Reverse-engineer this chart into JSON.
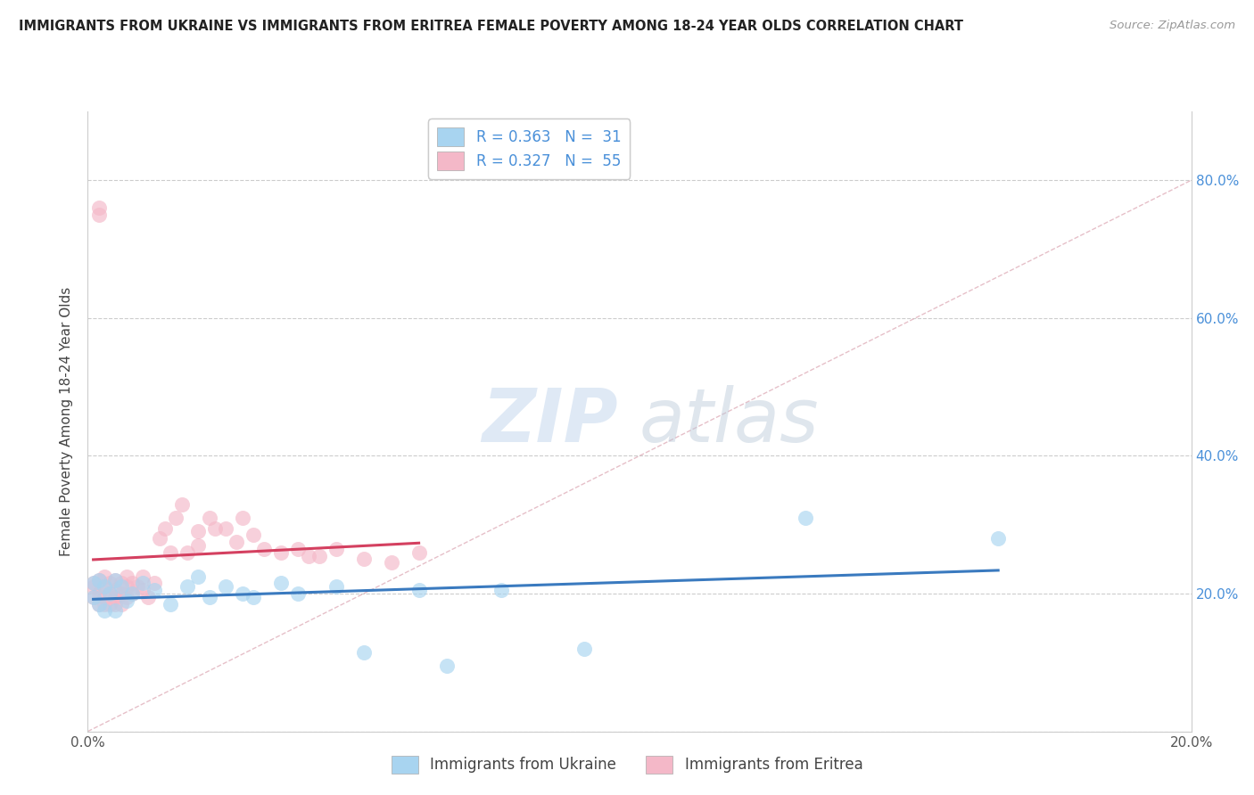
{
  "title": "IMMIGRANTS FROM UKRAINE VS IMMIGRANTS FROM ERITREA FEMALE POVERTY AMONG 18-24 YEAR OLDS CORRELATION CHART",
  "source": "Source: ZipAtlas.com",
  "ylabel": "Female Poverty Among 18-24 Year Olds",
  "xlim": [
    0.0,
    0.2
  ],
  "ylim": [
    0.0,
    0.9
  ],
  "ukraine_color": "#a8d4f0",
  "eritrea_color": "#f4b8c8",
  "ukraine_line_color": "#3a7abf",
  "eritrea_line_color": "#d44060",
  "diag_line_color": "#e0b0bb",
  "ukraine_R": 0.363,
  "ukraine_N": 31,
  "eritrea_R": 0.327,
  "eritrea_N": 55,
  "watermark_zip": "ZIP",
  "watermark_atlas": "atlas",
  "legend_ukraine": "Immigrants from Ukraine",
  "legend_eritrea": "Immigrants from Eritrea",
  "ukraine_x": [
    0.001,
    0.001,
    0.002,
    0.002,
    0.003,
    0.003,
    0.004,
    0.005,
    0.005,
    0.006,
    0.007,
    0.008,
    0.01,
    0.012,
    0.015,
    0.018,
    0.02,
    0.022,
    0.025,
    0.028,
    0.03,
    0.035,
    0.038,
    0.045,
    0.05,
    0.06,
    0.065,
    0.075,
    0.09,
    0.13,
    0.165
  ],
  "ukraine_y": [
    0.215,
    0.195,
    0.22,
    0.185,
    0.21,
    0.175,
    0.2,
    0.22,
    0.175,
    0.21,
    0.19,
    0.2,
    0.215,
    0.205,
    0.185,
    0.21,
    0.225,
    0.195,
    0.21,
    0.2,
    0.195,
    0.215,
    0.2,
    0.21,
    0.115,
    0.205,
    0.095,
    0.205,
    0.12,
    0.31,
    0.28
  ],
  "eritrea_x": [
    0.001,
    0.001,
    0.001,
    0.002,
    0.002,
    0.002,
    0.003,
    0.003,
    0.003,
    0.003,
    0.004,
    0.004,
    0.004,
    0.005,
    0.005,
    0.005,
    0.005,
    0.006,
    0.006,
    0.006,
    0.007,
    0.007,
    0.007,
    0.008,
    0.008,
    0.009,
    0.01,
    0.01,
    0.011,
    0.012,
    0.013,
    0.014,
    0.015,
    0.016,
    0.017,
    0.018,
    0.02,
    0.02,
    0.022,
    0.023,
    0.025,
    0.027,
    0.028,
    0.03,
    0.032,
    0.035,
    0.038,
    0.04,
    0.042,
    0.045,
    0.05,
    0.055,
    0.06,
    0.002,
    0.002
  ],
  "eritrea_y": [
    0.215,
    0.21,
    0.195,
    0.22,
    0.2,
    0.185,
    0.225,
    0.21,
    0.195,
    0.185,
    0.215,
    0.2,
    0.185,
    0.22,
    0.205,
    0.195,
    0.185,
    0.215,
    0.2,
    0.185,
    0.225,
    0.21,
    0.195,
    0.215,
    0.2,
    0.21,
    0.225,
    0.205,
    0.195,
    0.215,
    0.28,
    0.295,
    0.26,
    0.31,
    0.33,
    0.26,
    0.29,
    0.27,
    0.31,
    0.295,
    0.295,
    0.275,
    0.31,
    0.285,
    0.265,
    0.26,
    0.265,
    0.255,
    0.255,
    0.265,
    0.25,
    0.245,
    0.26,
    0.75,
    0.76
  ]
}
